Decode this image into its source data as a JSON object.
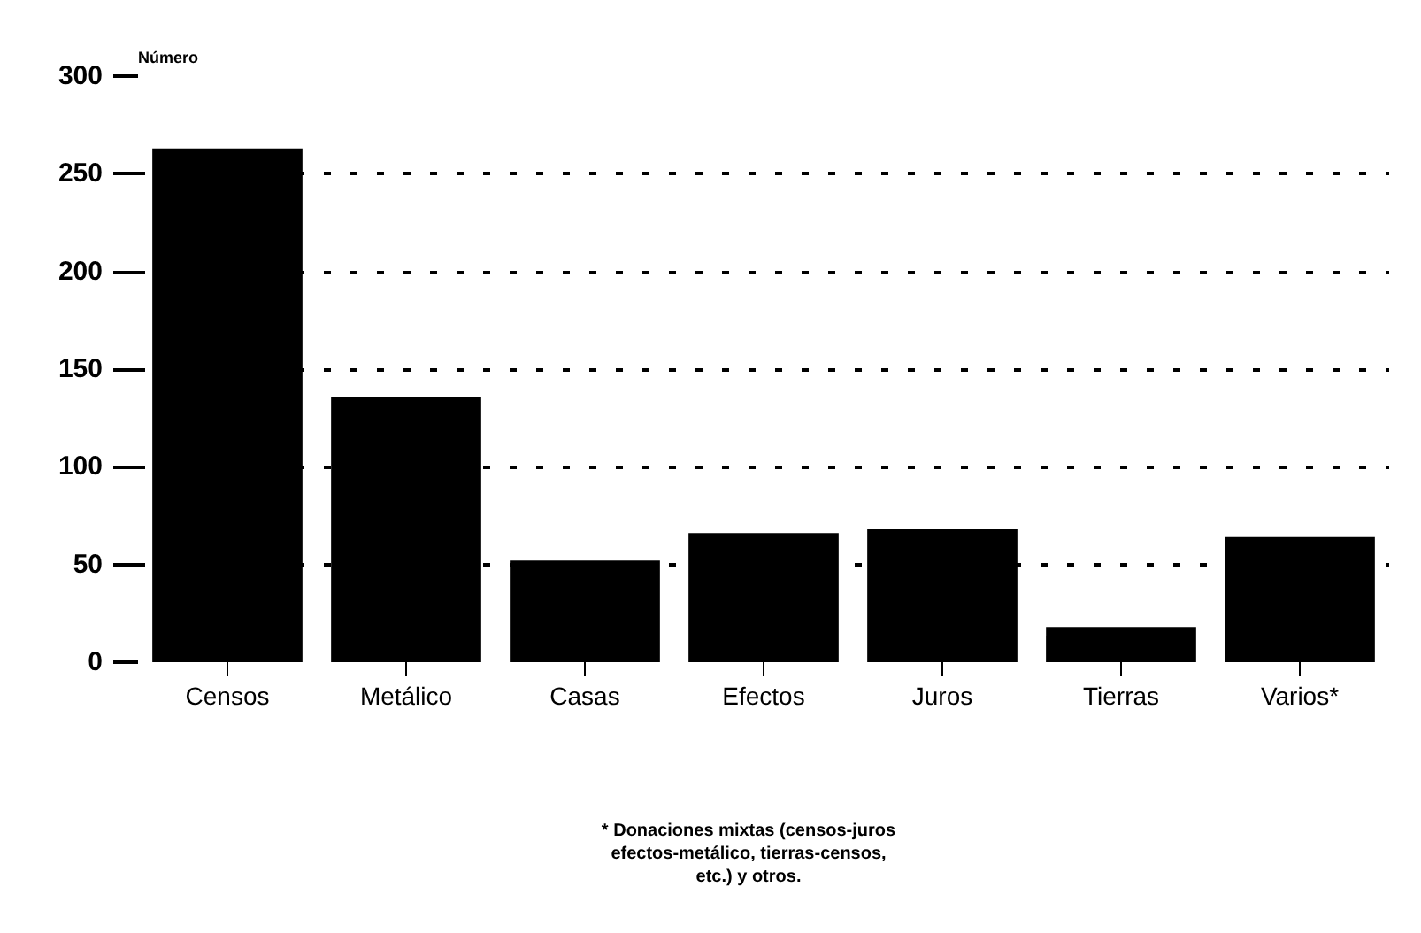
{
  "chart_data": {
    "type": "bar",
    "ylabel": "Número",
    "categories": [
      "Censos",
      "Metálico",
      "Casas",
      "Efectos",
      "Juros",
      "Tierras",
      "Varios*"
    ],
    "values": [
      263,
      136,
      52,
      66,
      68,
      18,
      64
    ],
    "color": "#000000",
    "ylim": [
      0,
      300
    ],
    "yticks": [
      0,
      50,
      100,
      150,
      200,
      250,
      300
    ],
    "grid": "y",
    "annotations": [
      "* Donaciones mixtas (censos-juros\nefectos-metálico, tierras-censos,\netc.) y otros."
    ]
  }
}
